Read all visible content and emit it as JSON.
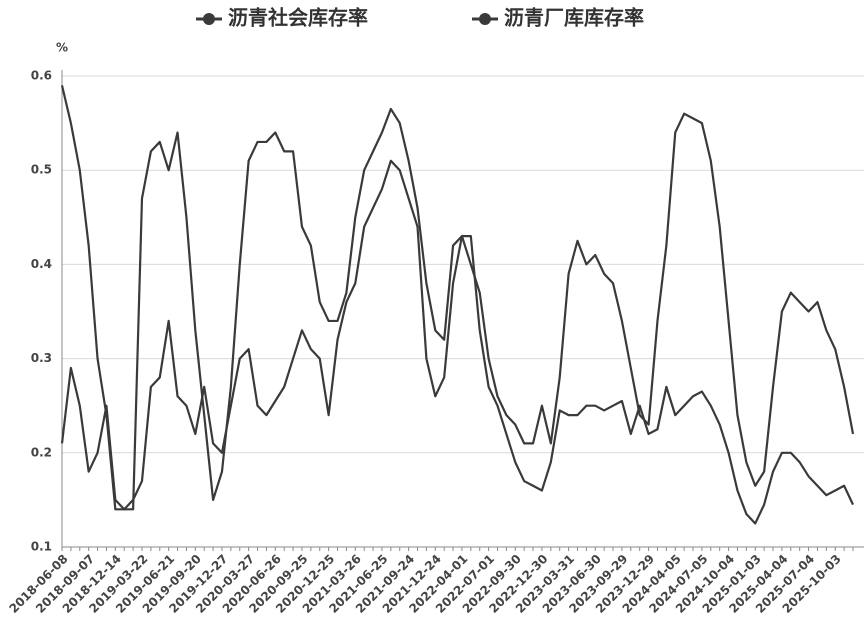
{
  "chart_data": {
    "type": "line",
    "y_label": "%",
    "categories": [
      "2018-06-08",
      null,
      null,
      "2018-09-07",
      null,
      null,
      "2018-12-14",
      null,
      null,
      "2019-03-22",
      null,
      null,
      "2019-06-21",
      null,
      null,
      "2019-09-20",
      null,
      null,
      "2019-12-27",
      null,
      null,
      "2020-03-27",
      null,
      null,
      "2020-06-26",
      null,
      null,
      "2020-09-25",
      null,
      null,
      "2020-12-25",
      null,
      null,
      "2021-03-26",
      null,
      null,
      "2021-06-25",
      null,
      null,
      "2021-09-24",
      null,
      null,
      "2021-12-24",
      null,
      null,
      "2022-04-01",
      null,
      null,
      "2022-07-01",
      null,
      null,
      "2022-09-30",
      null,
      null,
      "2022-12-30",
      null,
      null,
      "2023-03-31",
      null,
      null,
      "2023-06-30",
      null,
      null,
      "2023-09-29",
      null,
      null,
      "2023-12-29",
      null,
      null,
      "2024-04-05",
      null,
      null,
      "2024-07-05",
      null,
      null,
      "2024-10-04",
      null,
      null,
      "2025-01-03",
      null,
      null,
      "2025-04-04",
      null,
      null,
      "2025-07-04",
      null,
      null,
      "2025-10-03",
      null,
      null
    ],
    "series": [
      {
        "name": "沥青社会库存率",
        "color": "#3a3a3a",
        "values": [
          0.59,
          0.55,
          0.5,
          0.42,
          0.3,
          0.24,
          0.14,
          0.14,
          0.14,
          0.47,
          0.52,
          0.53,
          0.5,
          0.54,
          0.45,
          0.33,
          0.24,
          0.15,
          0.18,
          0.27,
          0.4,
          0.51,
          0.53,
          0.53,
          0.54,
          0.52,
          0.52,
          0.44,
          0.42,
          0.36,
          0.34,
          0.34,
          0.37,
          0.45,
          0.5,
          0.52,
          0.54,
          0.565,
          0.55,
          0.51,
          0.46,
          0.38,
          0.33,
          0.32,
          0.42,
          0.43,
          0.4,
          0.37,
          0.3,
          0.26,
          0.24,
          0.23,
          0.21,
          0.21,
          0.25,
          0.21,
          0.28,
          0.39,
          0.425,
          0.4,
          0.41,
          0.39,
          0.38,
          0.34,
          0.29,
          0.24,
          0.23,
          0.34,
          0.42,
          0.54,
          0.56,
          0.555,
          0.55,
          0.51,
          0.44,
          0.34,
          0.24,
          0.19,
          0.165,
          0.18,
          0.27,
          0.35,
          0.37,
          0.36,
          0.35,
          0.36,
          0.33,
          0.31,
          0.27,
          0.22
        ]
      },
      {
        "name": "沥青厂库库存率",
        "color": "#3a3a3a",
        "values": [
          0.21,
          0.29,
          0.25,
          0.18,
          0.2,
          0.25,
          0.15,
          0.14,
          0.15,
          0.17,
          0.27,
          0.28,
          0.34,
          0.26,
          0.25,
          0.22,
          0.27,
          0.21,
          0.2,
          0.25,
          0.3,
          0.31,
          0.25,
          0.24,
          0.255,
          0.27,
          0.3,
          0.33,
          0.31,
          0.3,
          0.24,
          0.32,
          0.36,
          0.38,
          0.44,
          0.46,
          0.48,
          0.51,
          0.5,
          0.47,
          0.44,
          0.3,
          0.26,
          0.28,
          0.38,
          0.43,
          0.43,
          0.33,
          0.27,
          0.25,
          0.22,
          0.19,
          0.17,
          0.165,
          0.16,
          0.19,
          0.245,
          0.24,
          0.24,
          0.25,
          0.25,
          0.245,
          0.25,
          0.255,
          0.22,
          0.25,
          0.22,
          0.225,
          0.27,
          0.24,
          0.25,
          0.26,
          0.265,
          0.25,
          0.23,
          0.2,
          0.16,
          0.135,
          0.125,
          0.145,
          0.18,
          0.2,
          0.2,
          0.19,
          0.175,
          0.165,
          0.155,
          0.16,
          0.165,
          0.145
        ]
      }
    ],
    "ylim": [
      0.1,
      0.6
    ],
    "yticks": [
      0.1,
      0.2,
      0.3,
      0.4,
      0.5,
      0.6
    ],
    "grid": true
  }
}
